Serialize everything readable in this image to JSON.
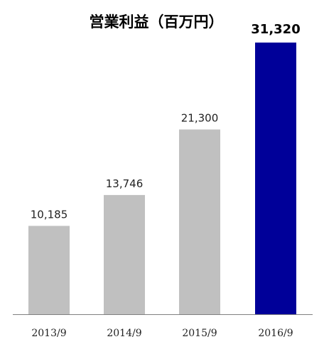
{
  "chart_data": {
    "type": "bar",
    "title": "営業利益（百万円）",
    "xlabel": "",
    "ylabel": "",
    "categories": [
      "2013/9",
      "2014/9",
      "2015/9",
      "2016/9"
    ],
    "values": [
      10185,
      13746,
      21300,
      31320
    ],
    "value_labels": [
      "10,185",
      "13,746",
      "21,300",
      "31,320"
    ],
    "ylim": [
      0,
      31320
    ],
    "highlight_index": 3,
    "colors": {
      "bar": "#c0c0c0",
      "highlight": "#000099",
      "axis": "#808080"
    },
    "grid": false,
    "legend": "none"
  }
}
